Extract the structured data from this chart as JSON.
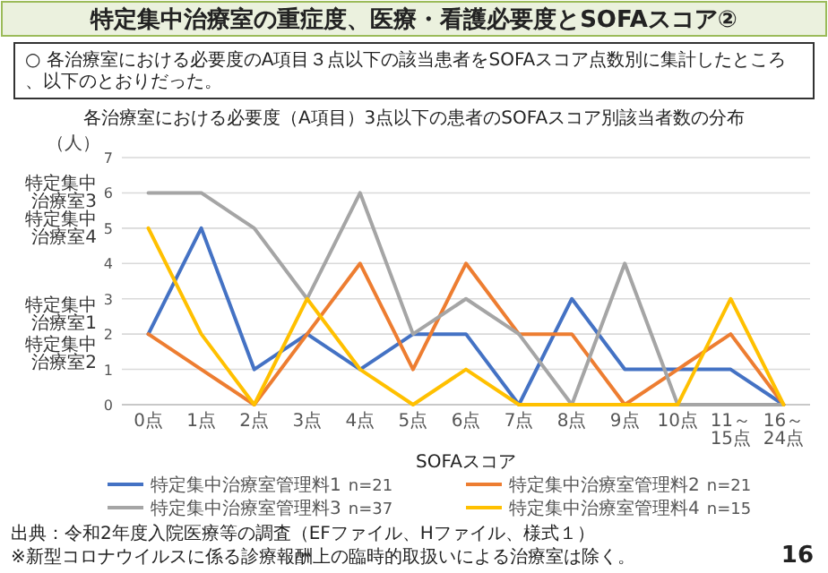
{
  "chart_data": {
    "type": "line",
    "title": "特定集中治療室の重症度、医療・看護必要度とSOFAスコア②",
    "subtitle": "各治療室における必要度（A項目）3点以下の患者のSOFAスコア別該当者数の分布",
    "xlabel": "SOFAスコア",
    "ylabel": "（人）",
    "categories": [
      "0点",
      "1点",
      "2点",
      "3点",
      "4点",
      "5点",
      "6点",
      "7点",
      "8点",
      "9点",
      "10点",
      "11～15点",
      "16～24点"
    ],
    "series": [
      {
        "name": "特定集中治療室管理料1",
        "color": "#4472c4",
        "values": [
          2,
          5,
          1,
          2,
          1,
          2,
          2,
          0,
          3,
          1,
          1,
          1,
          0
        ]
      },
      {
        "name": "特定集中治療室管理料2",
        "color": "#ed7d31",
        "values": [
          2,
          1,
          0,
          2,
          4,
          1,
          4,
          2,
          2,
          0,
          1,
          2,
          0
        ]
      },
      {
        "name": "特定集中治療室管理料3",
        "color": "#a5a5a5",
        "values": [
          6,
          6,
          5,
          3,
          6,
          2,
          3,
          2,
          0,
          4,
          0,
          0,
          0
        ]
      },
      {
        "name": "特定集中治療室管理料4",
        "color": "#ffc000",
        "values": [
          5,
          2,
          0,
          3,
          1,
          0,
          1,
          0,
          0,
          0,
          0,
          3,
          0
        ]
      }
    ],
    "ylim": [
      0,
      7
    ],
    "yticks": [
      0,
      1,
      2,
      3,
      4,
      5,
      6,
      7
    ],
    "grid": "y",
    "legend": "bottom",
    "marker": "none",
    "line_style": "solid",
    "annotations": [
      "○ 各治療室における必要度のA項目３点以下の該当患者をSOFAスコア点数別に集計したところ、以下のとおりだった。",
      "出典：令和2年度入院医療等の調査（EFファイル、Hファイル、様式１）",
      "※新型コロナウイルスに係る診療報酬上の臨時的取扱いによる治療室は除く。",
      "16",
      "n=21",
      "n=21",
      "n=37",
      "n=15",
      {
        "text": "特定集中治療室3",
        "x": "0点",
        "y": 6
      },
      {
        "text": "特定集中治療室4",
        "x": "0点",
        "y": 5
      },
      {
        "text": "特定集中治療室1",
        "x": "0点",
        "y": 2
      },
      {
        "text": "特定集中治療室2",
        "x": "0点",
        "y": 2
      }
    ]
  }
}
